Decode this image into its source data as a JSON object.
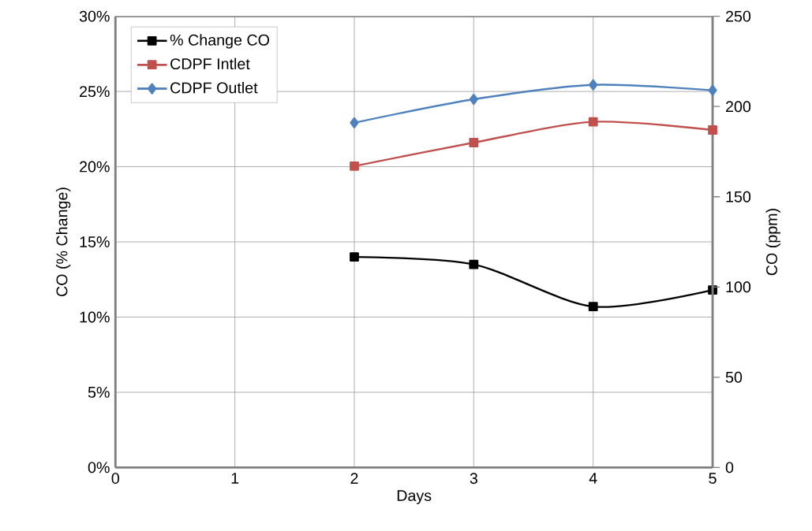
{
  "chart_data": {
    "type": "line",
    "xlabel": "Days",
    "ylabel": "CO  (% Change)",
    "y2label": "CO (ppm)",
    "x": [
      2,
      3,
      4,
      5
    ],
    "series": [
      {
        "name": "% Change CO",
        "color": "#000000",
        "marker": "square",
        "values": [
          14.0,
          13.5,
          10.7,
          11.8
        ]
      },
      {
        "name": "CDPF Intlet",
        "color": "#c0504d",
        "marker": "square",
        "axis": "y2",
        "values": [
          167,
          180,
          191.5,
          187
        ]
      },
      {
        "name": "CDPF Outlet",
        "color": "#4f81bd",
        "marker": "diamond",
        "axis": "y2",
        "values": [
          191,
          204,
          212,
          209
        ]
      }
    ],
    "xlim": [
      0,
      5
    ],
    "xticks": [
      0,
      1,
      2,
      3,
      4,
      5
    ],
    "ylim": [
      0,
      30
    ],
    "yticks": [
      {
        "value": 0,
        "label": "0%"
      },
      {
        "value": 5,
        "label": "5%"
      },
      {
        "value": 10,
        "label": "10%"
      },
      {
        "value": 15,
        "label": "15%"
      },
      {
        "value": 20,
        "label": "20%"
      },
      {
        "value": 25,
        "label": "25%"
      },
      {
        "value": 30,
        "label": "30%"
      }
    ],
    "y2lim": [
      0,
      250
    ],
    "y2ticks": [
      0,
      50,
      100,
      150,
      200,
      250
    ],
    "grid": true,
    "legend": "top left",
    "line_style": "solid"
  }
}
